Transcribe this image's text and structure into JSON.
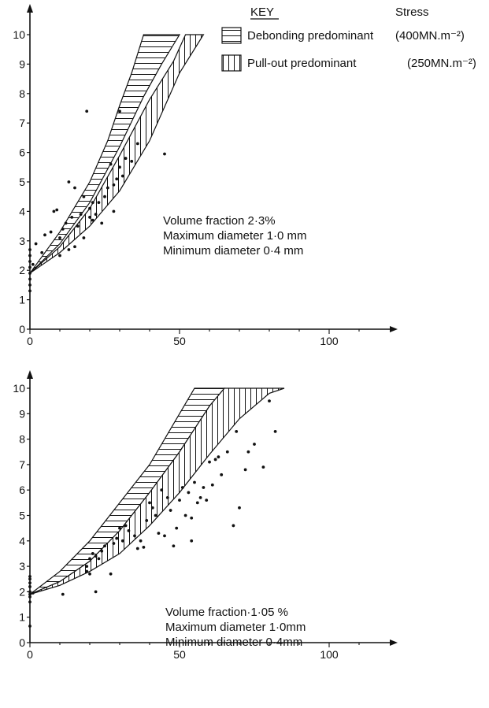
{
  "key": {
    "heading": "KEY",
    "stress_heading": "Stress",
    "entries": [
      {
        "label": "Debonding predominant",
        "stress": "(400MN.m⁻²)",
        "pattern": "horizontal-hatch"
      },
      {
        "label": "Pull-out predominant",
        "stress": "(250MN.m⁻²)",
        "pattern": "vertical-hatch"
      }
    ]
  },
  "chart_data": [
    {
      "type": "scatter",
      "title": "",
      "xlabel": "",
      "ylabel": "",
      "xlim": [
        0,
        120
      ],
      "ylim": [
        0,
        10.3
      ],
      "xticks": [
        0,
        50,
        100
      ],
      "yticks": [
        0,
        1,
        2,
        3,
        4,
        5,
        6,
        7,
        8,
        9,
        10
      ],
      "grid": false,
      "annotation_lines": [
        "Volume fraction 2·3%",
        "Maximum diameter  1·0 mm",
        "Minimum diameter  0·4 mm"
      ],
      "bands": [
        {
          "name": "Debonding predominant",
          "pattern": "horizontal-hatch",
          "upper": [
            [
              0,
              1.9
            ],
            [
              10,
              3.3
            ],
            [
              20,
              5.0
            ],
            [
              26,
              6.4
            ],
            [
              30,
              7.6
            ],
            [
              34,
              8.7
            ],
            [
              38,
              10
            ]
          ],
          "lower": [
            [
              0,
              1.9
            ],
            [
              10,
              2.9
            ],
            [
              20,
              4.3
            ],
            [
              30,
              6.2
            ],
            [
              38,
              7.9
            ],
            [
              44,
              9.0
            ],
            [
              50,
              10
            ]
          ]
        },
        {
          "name": "Pull-out predominant",
          "pattern": "vertical-hatch",
          "upper": [
            [
              0,
              1.9
            ],
            [
              10,
              2.8
            ],
            [
              20,
              4.1
            ],
            [
              30,
              5.9
            ],
            [
              40,
              7.8
            ],
            [
              48,
              9.1
            ],
            [
              52,
              10
            ]
          ],
          "lower": [
            [
              0,
              1.9
            ],
            [
              10,
              2.6
            ],
            [
              20,
              3.5
            ],
            [
              30,
              4.7
            ],
            [
              40,
              6.4
            ],
            [
              50,
              8.7
            ],
            [
              58,
              10
            ]
          ]
        }
      ],
      "points": [
        [
          0,
          1.3
        ],
        [
          0,
          1.5
        ],
        [
          0,
          1.7
        ],
        [
          0,
          1.9
        ],
        [
          0,
          2.1
        ],
        [
          0,
          2.3
        ],
        [
          0,
          2.5
        ],
        [
          0,
          2.7
        ],
        [
          1,
          2.2
        ],
        [
          2,
          2.9
        ],
        [
          4,
          2.6
        ],
        [
          5,
          3.2
        ],
        [
          7,
          3.3
        ],
        [
          8,
          4.0
        ],
        [
          9,
          4.05
        ],
        [
          10,
          2.5
        ],
        [
          10,
          3.1
        ],
        [
          11,
          3.4
        ],
        [
          12,
          3.6
        ],
        [
          13,
          2.7
        ],
        [
          13,
          5.0
        ],
        [
          14,
          3.8
        ],
        [
          15,
          2.8
        ],
        [
          15,
          4.8
        ],
        [
          16,
          3.5
        ],
        [
          17,
          3.9
        ],
        [
          18,
          3.1
        ],
        [
          18,
          4.5
        ],
        [
          19,
          7.4
        ],
        [
          20,
          3.8
        ],
        [
          20,
          4.1
        ],
        [
          21,
          4.3
        ],
        [
          21,
          3.7
        ],
        [
          22,
          3.9
        ],
        [
          23,
          4.3
        ],
        [
          24,
          3.6
        ],
        [
          25,
          4.5
        ],
        [
          26,
          4.8
        ],
        [
          27,
          5.6
        ],
        [
          28,
          4.0
        ],
        [
          28,
          4.9
        ],
        [
          29,
          5.1
        ],
        [
          30,
          5.5
        ],
        [
          30,
          7.4
        ],
        [
          31,
          5.2
        ],
        [
          32,
          5.8
        ],
        [
          34,
          5.7
        ],
        [
          36,
          6.3
        ],
        [
          45,
          5.95
        ]
      ]
    },
    {
      "type": "scatter",
      "title": "",
      "xlabel": "",
      "ylabel": "",
      "xlim": [
        0,
        120
      ],
      "ylim": [
        0,
        10.3
      ],
      "xticks": [
        0,
        50,
        100
      ],
      "yticks": [
        0,
        1,
        2,
        3,
        4,
        5,
        6,
        7,
        8,
        9,
        10
      ],
      "grid": false,
      "annotation_lines": [
        "Volume fraction·1·05 %",
        "Maximum diameter 1·0mm",
        "Minimum diameter 0·4mm"
      ],
      "bands": [
        {
          "name": "Debonding predominant",
          "pattern": "horizontal-hatch",
          "upper": [
            [
              0,
              1.9
            ],
            [
              10,
              2.8
            ],
            [
              20,
              4.0
            ],
            [
              30,
              5.5
            ],
            [
              40,
              7.0
            ],
            [
              50,
              9.0
            ],
            [
              55,
              10
            ]
          ],
          "lower": [
            [
              0,
              1.9
            ],
            [
              10,
              2.4
            ],
            [
              20,
              3.2
            ],
            [
              30,
              4.4
            ],
            [
              40,
              5.9
            ],
            [
              50,
              7.5
            ],
            [
              60,
              9.3
            ],
            [
              65,
              10
            ]
          ]
        },
        {
          "name": "Pull-out predominant",
          "pattern": "vertical-hatch",
          "upper": [
            [
              0,
              1.9
            ],
            [
              10,
              2.4
            ],
            [
              20,
              3.2
            ],
            [
              30,
              4.4
            ],
            [
              40,
              5.9
            ],
            [
              50,
              7.5
            ],
            [
              60,
              9.3
            ],
            [
              65,
              10
            ]
          ],
          "lower": [
            [
              0,
              1.9
            ],
            [
              10,
              2.25
            ],
            [
              20,
              2.8
            ],
            [
              30,
              3.5
            ],
            [
              40,
              4.6
            ],
            [
              50,
              5.9
            ],
            [
              60,
              7.4
            ],
            [
              70,
              8.8
            ],
            [
              80,
              9.8
            ],
            [
              85,
              10
            ]
          ]
        }
      ],
      "points": [
        [
          0,
          0.65
        ],
        [
          0,
          1.6
        ],
        [
          0,
          1.8
        ],
        [
          0,
          1.9
        ],
        [
          0,
          2.0
        ],
        [
          0,
          2.2
        ],
        [
          0,
          2.35
        ],
        [
          0,
          2.5
        ],
        [
          0,
          2.6
        ],
        [
          1,
          1.95
        ],
        [
          11,
          1.9
        ],
        [
          19,
          2.8
        ],
        [
          19,
          3.0
        ],
        [
          20,
          3.3
        ],
        [
          20,
          2.7
        ],
        [
          21,
          3.5
        ],
        [
          22,
          3.4
        ],
        [
          22,
          2.0
        ],
        [
          23,
          3.3
        ],
        [
          24,
          3.6
        ],
        [
          25,
          3.8
        ],
        [
          27,
          2.7
        ],
        [
          28,
          3.9
        ],
        [
          29,
          4.1
        ],
        [
          30,
          4.5
        ],
        [
          31,
          4.0
        ],
        [
          32,
          4.6
        ],
        [
          33,
          4.4
        ],
        [
          35,
          4.2
        ],
        [
          36,
          3.7
        ],
        [
          37,
          4.0
        ],
        [
          38,
          3.75
        ],
        [
          39,
          4.8
        ],
        [
          40,
          5.5
        ],
        [
          41,
          5.3
        ],
        [
          42,
          5.0
        ],
        [
          43,
          4.3
        ],
        [
          44,
          6.0
        ],
        [
          45,
          4.2
        ],
        [
          46,
          5.7
        ],
        [
          47,
          5.2
        ],
        [
          48,
          3.8
        ],
        [
          49,
          4.5
        ],
        [
          50,
          5.6
        ],
        [
          51,
          6.1
        ],
        [
          52,
          5.0
        ],
        [
          53,
          5.9
        ],
        [
          54,
          4.9
        ],
        [
          54,
          4.0
        ],
        [
          55,
          6.3
        ],
        [
          56,
          5.5
        ],
        [
          57,
          5.7
        ],
        [
          58,
          6.1
        ],
        [
          59,
          5.6
        ],
        [
          60,
          7.1
        ],
        [
          61,
          6.2
        ],
        [
          62,
          7.2
        ],
        [
          63,
          7.3
        ],
        [
          64,
          6.6
        ],
        [
          66,
          7.5
        ],
        [
          68,
          4.6
        ],
        [
          69,
          8.3
        ],
        [
          70,
          5.3
        ],
        [
          72,
          6.8
        ],
        [
          73,
          7.5
        ],
        [
          75,
          7.8
        ],
        [
          78,
          6.9
        ],
        [
          80,
          9.5
        ],
        [
          82,
          8.3
        ]
      ]
    }
  ]
}
